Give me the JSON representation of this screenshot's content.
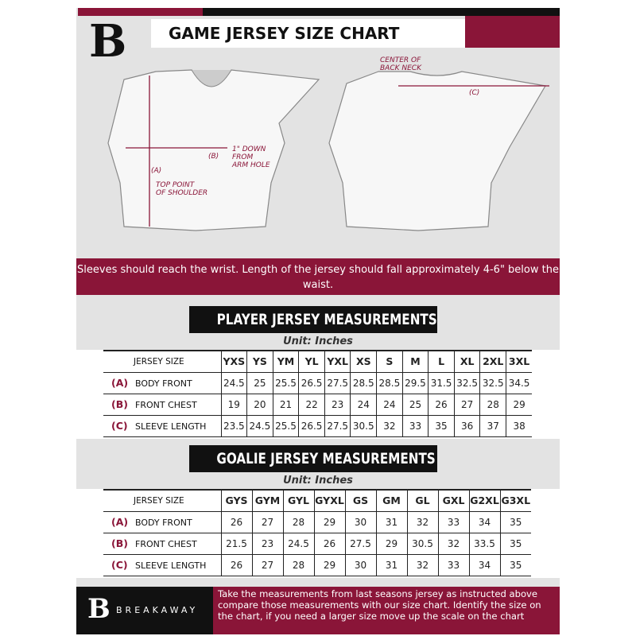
{
  "header": {
    "title": "GAME JERSEY SIZE CHART",
    "logo_letter": "B"
  },
  "diagram": {
    "label_a": "(A)",
    "note_a": "TOP POINT\nOF SHOULDER",
    "label_b": "(B)",
    "note_b": "1\" DOWN\nFROM\nARM HOLE",
    "label_c": "(C)",
    "note_c": "CENTER OF\nBACK NECK"
  },
  "notice": "Sleeves should reach the wrist. Length of the jersey should fall approximately 4-6\" below the waist.",
  "player": {
    "title": "PLAYER JERSEY MEASUREMENTS",
    "unit": "Unit: Inches",
    "header_label": "JERSEY SIZE",
    "sizes": [
      "YXS",
      "YS",
      "YM",
      "YL",
      "YXL",
      "XS",
      "S",
      "M",
      "L",
      "XL",
      "2XL",
      "3XL"
    ],
    "rows": [
      {
        "key": "(A)",
        "label": "BODY FRONT",
        "values": [
          "24.5",
          "25",
          "25.5",
          "26.5",
          "27.5",
          "28.5",
          "28.5",
          "29.5",
          "31.5",
          "32.5",
          "32.5",
          "34.5"
        ]
      },
      {
        "key": "(B)",
        "label": "FRONT CHEST",
        "values": [
          "19",
          "20",
          "21",
          "22",
          "23",
          "24",
          "24",
          "25",
          "26",
          "27",
          "28",
          "29"
        ]
      },
      {
        "key": "(C)",
        "label": "SLEEVE LENGTH",
        "values": [
          "23.5",
          "24.5",
          "25.5",
          "26.5",
          "27.5",
          "30.5",
          "32",
          "33",
          "35",
          "36",
          "37",
          "38"
        ]
      }
    ]
  },
  "goalie": {
    "title": "GOALIE JERSEY MEASUREMENTS",
    "unit": "Unit: Inches",
    "header_label": "JERSEY SIZE",
    "sizes": [
      "GYS",
      "GYM",
      "GYL",
      "GYXL",
      "GS",
      "GM",
      "GL",
      "GXL",
      "G2XL",
      "G3XL"
    ],
    "rows": [
      {
        "key": "(A)",
        "label": "BODY FRONT",
        "values": [
          "26",
          "27",
          "28",
          "29",
          "30",
          "31",
          "32",
          "33",
          "34",
          "35"
        ]
      },
      {
        "key": "(B)",
        "label": "FRONT CHEST",
        "values": [
          "21.5",
          "23",
          "24.5",
          "26",
          "27.5",
          "29",
          "30.5",
          "32",
          "33.5",
          "35"
        ]
      },
      {
        "key": "(C)",
        "label": "SLEEVE LENGTH",
        "values": [
          "26",
          "27",
          "28",
          "29",
          "30",
          "31",
          "32",
          "33",
          "34",
          "35"
        ]
      }
    ]
  },
  "footer": {
    "brand": "BREAKAWAY",
    "logo_letter": "B",
    "text": "Take the measurements from last seasons jersey as instructed above compare those measurements  with our size chart. Identify the size on the chart, if you need a larger size move up the scale on the chart"
  },
  "colors": {
    "accent": "#8a1538",
    "dark": "#111111",
    "panel": "#e3e3e3"
  }
}
